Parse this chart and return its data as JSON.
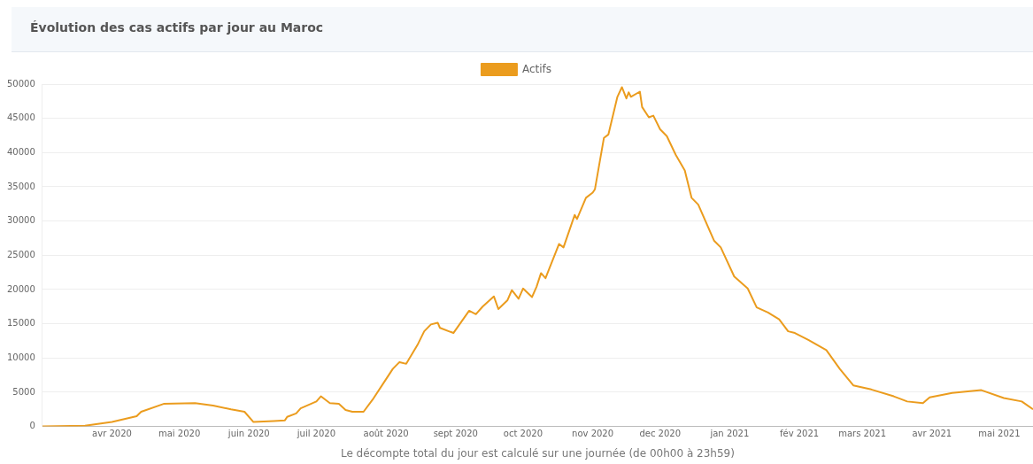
{
  "chart_data": {
    "type": "line",
    "title": "Évolution des cas actifs par jour au Maroc",
    "xlabel": "Le décompte total du jour est calculé sur une journée (de 00h00 à 23h59)",
    "x": [
      "2020-03-01",
      "2020-03-20",
      "2020-04-01",
      "2020-04-12",
      "2020-04-14",
      "2020-04-24",
      "2020-05-08",
      "2020-05-16",
      "2020-05-24",
      "2020-05-30",
      "2020-06-03",
      "2020-06-12",
      "2020-06-17",
      "2020-06-18",
      "2020-06-22",
      "2020-06-24",
      "2020-07-01",
      "2020-07-03",
      "2020-07-07",
      "2020-07-11",
      "2020-07-14",
      "2020-07-17",
      "2020-07-22",
      "2020-07-26",
      "2020-07-31",
      "2020-08-04",
      "2020-08-07",
      "2020-08-10",
      "2020-08-15",
      "2020-08-18",
      "2020-08-21",
      "2020-08-24",
      "2020-08-25",
      "2020-08-31",
      "2020-09-07",
      "2020-09-10",
      "2020-09-13",
      "2020-09-18",
      "2020-09-20",
      "2020-09-24",
      "2020-09-26",
      "2020-09-29",
      "2020-10-01",
      "2020-10-05",
      "2020-10-07",
      "2020-10-09",
      "2020-10-11",
      "2020-10-17",
      "2020-10-19",
      "2020-10-24",
      "2020-10-25",
      "2020-10-29",
      "2020-11-01",
      "2020-11-02",
      "2020-11-06",
      "2020-11-08",
      "2020-11-12",
      "2020-11-14",
      "2020-11-16",
      "2020-11-17",
      "2020-11-18",
      "2020-11-22",
      "2020-11-23",
      "2020-11-26",
      "2020-11-28",
      "2020-12-01",
      "2020-12-04",
      "2020-12-08",
      "2020-12-12",
      "2020-12-15",
      "2020-12-18",
      "2020-12-25",
      "2020-12-28",
      "2021-01-03",
      "2021-01-09",
      "2021-01-13",
      "2021-01-18",
      "2021-01-23",
      "2021-01-27",
      "2021-01-30",
      "2021-02-05",
      "2021-02-13",
      "2021-02-19",
      "2021-02-25",
      "2021-03-05",
      "2021-03-15",
      "2021-03-21",
      "2021-03-28",
      "2021-03-31",
      "2021-04-10",
      "2021-04-23",
      "2021-05-03",
      "2021-05-11",
      "2021-05-16"
    ],
    "series": [
      {
        "name": "Actifs",
        "color": "#eb9c1e",
        "values": [
          0,
          100,
          650,
          1500,
          2150,
          3300,
          3400,
          3050,
          2500,
          2150,
          650,
          800,
          900,
          1400,
          1900,
          2650,
          3650,
          4400,
          3400,
          3300,
          2400,
          2150,
          2150,
          3900,
          6400,
          8400,
          9400,
          9150,
          11900,
          13900,
          14900,
          15150,
          14400,
          13650,
          16900,
          16400,
          17500,
          19000,
          17150,
          18400,
          19900,
          18650,
          20150,
          18900,
          20400,
          22400,
          21650,
          26650,
          26150,
          30900,
          30300,
          33400,
          34150,
          34650,
          42150,
          42650,
          48150,
          49550,
          47900,
          48800,
          48150,
          48900,
          46650,
          45150,
          45400,
          43400,
          42400,
          39650,
          37400,
          33400,
          32400,
          27150,
          26150,
          21900,
          20150,
          17400,
          16650,
          15650,
          13900,
          13650,
          12650,
          11150,
          8400,
          6000,
          5400,
          4400,
          3650,
          3400,
          4250,
          4900,
          5300,
          4150,
          3650,
          2500
        ]
      }
    ],
    "xlim": [
      "2020-03-01",
      "2021-05-16"
    ],
    "xticks": [
      {
        "value": "2020-04-01",
        "label": "avr 2020"
      },
      {
        "value": "2020-05-01",
        "label": "mai 2020"
      },
      {
        "value": "2020-06-01",
        "label": "juin 2020"
      },
      {
        "value": "2020-07-01",
        "label": "juil 2020"
      },
      {
        "value": "2020-08-01",
        "label": "août 2020"
      },
      {
        "value": "2020-09-01",
        "label": "sept 2020"
      },
      {
        "value": "2020-10-01",
        "label": "oct 2020"
      },
      {
        "value": "2020-11-01",
        "label": "nov 2020"
      },
      {
        "value": "2020-12-01",
        "label": "dec 2020"
      },
      {
        "value": "2021-01-01",
        "label": "jan 2021"
      },
      {
        "value": "2021-02-01",
        "label": "fév 2021"
      },
      {
        "value": "2021-03-01",
        "label": "mars 2021"
      },
      {
        "value": "2021-04-01",
        "label": "avr 2021"
      },
      {
        "value": "2021-05-01",
        "label": "mai 2021"
      }
    ],
    "ylim": [
      0,
      50000
    ],
    "yticks": [
      0,
      5000,
      10000,
      15000,
      20000,
      25000,
      30000,
      35000,
      40000,
      45000,
      50000
    ],
    "grid": "y",
    "legend": "top",
    "marker": "none",
    "line_style": "solid"
  }
}
